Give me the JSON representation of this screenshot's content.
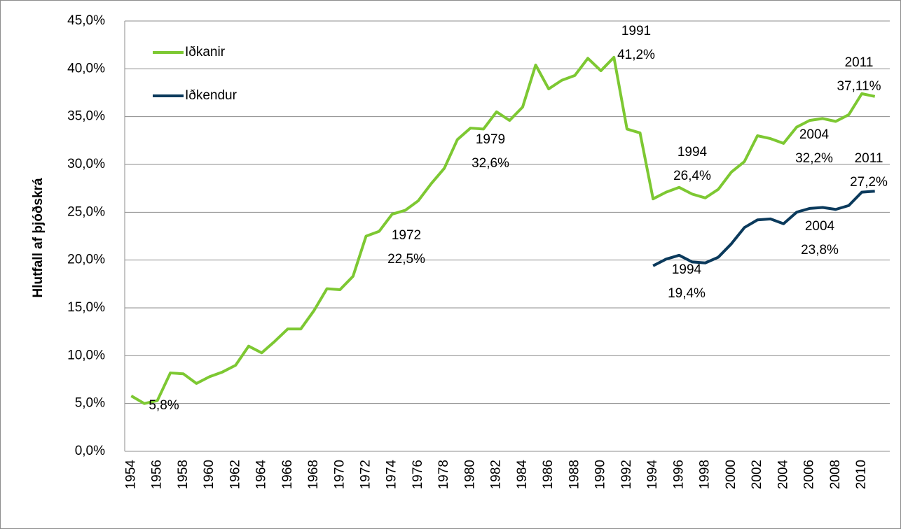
{
  "chart_data": {
    "type": "line",
    "ylabel": "Hlutfall af þjóðskrá",
    "categories": [
      "1954",
      null,
      "1956",
      null,
      "1958",
      null,
      "1960",
      null,
      "1962",
      null,
      "1964",
      null,
      "1966",
      null,
      "1968",
      null,
      "1970",
      null,
      "1972",
      null,
      "1974",
      null,
      "1976",
      null,
      "1978",
      null,
      "1980",
      null,
      "1982",
      null,
      "1984",
      null,
      "1986",
      null,
      "1988",
      null,
      "1990",
      null,
      "1992",
      null,
      "1994",
      null,
      "1996",
      null,
      "1998",
      null,
      "2000",
      null,
      "2002",
      null,
      "2004",
      null,
      "2006",
      null,
      "2008",
      null,
      "2010",
      null
    ],
    "series": [
      {
        "name": "Iðkanir",
        "color": "#7dc832",
        "values": [
          5.8,
          5.0,
          5.3,
          8.2,
          8.1,
          7.1,
          7.8,
          8.3,
          9.0,
          11.0,
          10.3,
          11.5,
          12.8,
          12.8,
          14.7,
          17.0,
          16.9,
          18.3,
          22.5,
          23.0,
          24.8,
          25.2,
          26.2,
          28.0,
          29.6,
          32.6,
          33.8,
          33.7,
          35.5,
          34.6,
          36.0,
          40.4,
          37.9,
          38.8,
          39.3,
          41.1,
          39.8,
          41.2,
          33.7,
          33.3,
          26.4,
          27.1,
          27.6,
          26.9,
          26.5,
          27.4,
          29.2,
          30.3,
          33.0,
          32.7,
          32.2,
          33.9,
          34.6,
          34.8,
          34.5,
          35.2,
          37.4,
          37.11
        ]
      },
      {
        "name": "Iðkendur",
        "color": "#0b3a5c",
        "values": [
          null,
          null,
          null,
          null,
          null,
          null,
          null,
          null,
          null,
          null,
          null,
          null,
          null,
          null,
          null,
          null,
          null,
          null,
          null,
          null,
          null,
          null,
          null,
          null,
          null,
          null,
          null,
          null,
          null,
          null,
          null,
          null,
          null,
          null,
          null,
          null,
          null,
          null,
          null,
          null,
          19.4,
          20.1,
          20.5,
          19.8,
          19.7,
          20.3,
          21.7,
          23.4,
          24.2,
          24.3,
          23.8,
          25.0,
          25.4,
          25.5,
          25.3,
          25.7,
          27.1,
          27.2
        ]
      }
    ],
    "ylim": [
      0,
      45
    ],
    "yticks": [
      {
        "value": 0,
        "label": "0,0%"
      },
      {
        "value": 5,
        "label": "5,0%"
      },
      {
        "value": 10,
        "label": "10,0%"
      },
      {
        "value": 15,
        "label": "15,0%"
      },
      {
        "value": 20,
        "label": "20,0%"
      },
      {
        "value": 25,
        "label": "25,0%"
      },
      {
        "value": 30,
        "label": "30,0%"
      },
      {
        "value": 35,
        "label": "35,0%"
      },
      {
        "value": 40,
        "label": "40,0%"
      },
      {
        "value": 45,
        "label": "45,0%"
      }
    ],
    "grid": true,
    "legend": "upper left",
    "annotations": [
      [
        "5,8%"
      ],
      [
        "1972",
        "22,5%"
      ],
      [
        "1979",
        "32,6%"
      ],
      [
        "1991",
        "41,2%"
      ],
      [
        "1994",
        "26,4%"
      ],
      [
        "1994",
        "19,4%"
      ],
      [
        "2004",
        "32,2%"
      ],
      [
        "2004",
        "23,8%"
      ],
      [
        "2011",
        "37,11%"
      ],
      [
        "2011",
        "27,2%"
      ]
    ]
  }
}
